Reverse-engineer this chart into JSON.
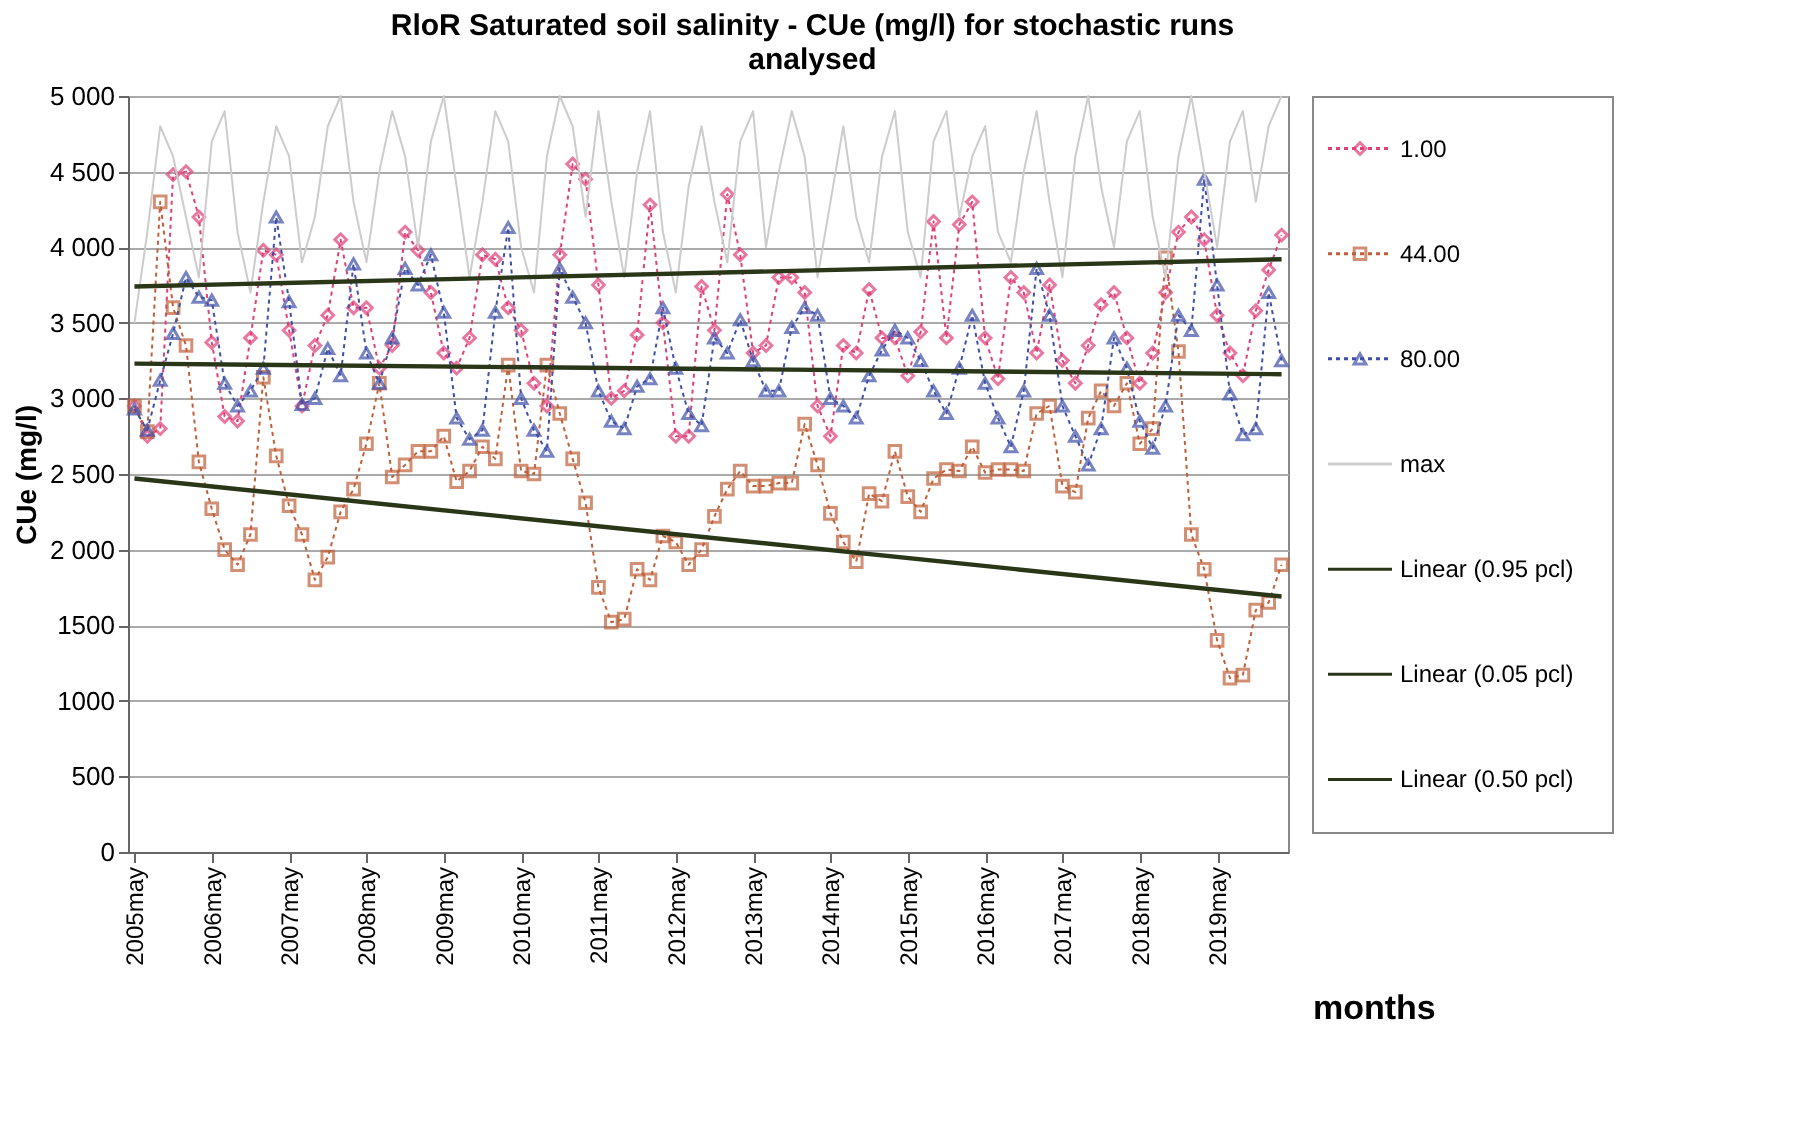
{
  "chart_data": {
    "type": "line",
    "title": "RloR Saturated soil salinity - CUe (mg/l)  for stochastic runs analysed",
    "xlabel": "months",
    "ylabel": "CUe (mg/l)",
    "categories": [
      "2005may",
      null,
      null,
      null,
      null,
      null,
      "2006may",
      null,
      null,
      null,
      null,
      null,
      "2007may",
      null,
      null,
      null,
      null,
      null,
      "2008may",
      null,
      null,
      null,
      null,
      null,
      "2009may",
      null,
      null,
      null,
      null,
      null,
      "2010may",
      null,
      null,
      null,
      null,
      null,
      "2011may",
      null,
      null,
      null,
      null,
      null,
      "2012may",
      null,
      null,
      null,
      null,
      null,
      "2013may",
      null,
      null,
      null,
      null,
      null,
      "2014may",
      null,
      null,
      null,
      null,
      null,
      "2015may",
      null,
      null,
      null,
      null,
      null,
      "2016may",
      null,
      null,
      null,
      null,
      null,
      "2017may",
      null,
      null,
      null,
      null,
      null,
      "2018may",
      null,
      null,
      null,
      null,
      null,
      "2019may",
      null,
      null,
      null,
      null,
      null
    ],
    "ylim": [
      0,
      5000
    ],
    "yticks": [
      0,
      500,
      1000,
      {
        "value": 1500,
        "label": "1500"
      },
      {
        "value": 2000,
        "label": "2 000"
      },
      {
        "value": 2500,
        "label": "2 500"
      },
      {
        "value": 3000,
        "label": "3 000"
      },
      {
        "value": 3500,
        "label": "3 500"
      },
      {
        "value": 4000,
        "label": "4 000"
      },
      {
        "value": 4500,
        "label": "4 500"
      },
      {
        "value": 5000,
        "label": "5 000"
      }
    ],
    "grid": "y",
    "legend": "right",
    "series": [
      {
        "name": "1.00",
        "color": "#e0407a",
        "marker": "diamond",
        "line_style": "dotted",
        "values": [
          2950,
          2750,
          2800,
          4480,
          4500,
          4200,
          3370,
          2880,
          2850,
          3400,
          3980,
          3950,
          3450,
          2950,
          3350,
          3550,
          4050,
          3600,
          3600,
          3200,
          3350,
          4100,
          3980,
          3700,
          3300,
          3200,
          3400,
          3950,
          3920,
          3600,
          3450,
          3100,
          2950,
          3950,
          4550,
          4450,
          3750,
          3000,
          3050,
          3420,
          4280,
          3500,
          2750,
          2750,
          3740,
          3450,
          4350,
          3950,
          3300,
          3350,
          3800,
          3800,
          3700,
          2950,
          2750,
          3350,
          3300,
          3720,
          3400,
          3400,
          3150,
          3440,
          4170,
          3400,
          4150,
          4300,
          3400,
          3130,
          3800,
          3700,
          3300,
          3750,
          3250,
          3100,
          3350,
          3620,
          3700,
          3400,
          3100,
          3300,
          3700,
          4100,
          4200,
          4050,
          3550,
          3300,
          3150,
          3580,
          3850,
          4080
        ]
      },
      {
        "name": "44.00",
        "color": "#c0603a",
        "marker": "square",
        "line_style": "dotted",
        "values": [
          2950,
          2780,
          4300,
          3600,
          3350,
          2580,
          2270,
          2000,
          1900,
          2100,
          3140,
          2620,
          2290,
          2100,
          1800,
          1950,
          2250,
          2400,
          2700,
          3100,
          2480,
          2560,
          2650,
          2650,
          2750,
          2450,
          2520,
          2680,
          2600,
          3220,
          2520,
          2500,
          3220,
          2900,
          2600,
          2310,
          1750,
          1520,
          1540,
          1870,
          1800,
          2090,
          2050,
          1900,
          2000,
          2220,
          2400,
          2520,
          2420,
          2420,
          2440,
          2440,
          2830,
          2560,
          2240,
          2050,
          1920,
          2370,
          2320,
          2650,
          2350,
          2250,
          2470,
          2530,
          2520,
          2680,
          2510,
          2530,
          2530,
          2520,
          2900,
          2950,
          2420,
          2380,
          2870,
          3050,
          2950,
          3100,
          2700,
          2800,
          3930,
          3310,
          2100,
          1870,
          1400,
          1150,
          1170,
          1600,
          1650,
          1900
        ]
      },
      {
        "name": "80.00",
        "color": "#4050a8",
        "marker": "triangle",
        "line_style": "dotted",
        "values": [
          2930,
          2790,
          3120,
          3430,
          3800,
          3670,
          3650,
          3100,
          2950,
          3050,
          3200,
          4200,
          3640,
          2960,
          3000,
          3330,
          3150,
          3890,
          3300,
          3100,
          3400,
          3860,
          3750,
          3950,
          3570,
          2870,
          2730,
          2790,
          3570,
          4130,
          3000,
          2790,
          2650,
          3860,
          3670,
          3500,
          3050,
          2850,
          2800,
          3080,
          3130,
          3600,
          3200,
          2900,
          2820,
          3400,
          3300,
          3520,
          3250,
          3050,
          3050,
          3470,
          3600,
          3550,
          3000,
          2950,
          2870,
          3150,
          3320,
          3450,
          3400,
          3250,
          3050,
          2900,
          3200,
          3550,
          3100,
          2870,
          2680,
          3050,
          3860,
          3550,
          2950,
          2750,
          2560,
          2800,
          3400,
          3200,
          2850,
          2670,
          2950,
          3550,
          3450,
          4450,
          3750,
          3030,
          2760,
          2800,
          3700,
          3250
        ]
      },
      {
        "name": "max",
        "color": "#cccccc",
        "marker": "none",
        "line_style": "solid",
        "values": [
          3500,
          4100,
          4800,
          4600,
          4200,
          3800,
          4700,
          4900,
          4100,
          3700,
          4300,
          4800,
          4600,
          3900,
          4200,
          4800,
          5000,
          4300,
          3900,
          4500,
          4900,
          4600,
          4000,
          4700,
          5000,
          4400,
          3800,
          4300,
          4900,
          4700,
          4000,
          3700,
          4600,
          5000,
          4800,
          4200,
          4900,
          4300,
          3800,
          4500,
          4900,
          4100,
          3700,
          4400,
          4800,
          4300,
          3900,
          4700,
          4900,
          4000,
          4500,
          4900,
          4600,
          3800,
          4300,
          4800,
          4200,
          3900,
          4600,
          4900,
          4100,
          3800,
          4700,
          4900,
          4200,
          4600,
          4800,
          4100,
          3900,
          4500,
          4900,
          4300,
          3800,
          4600,
          5000,
          4400,
          4000,
          4700,
          4900,
          4200,
          3800,
          4600,
          5000,
          4500,
          4000,
          4700,
          4900,
          4300,
          4800,
          5000
        ]
      },
      {
        "name": "Linear (0.95 pcl)",
        "color": "#2a3618",
        "marker": "none",
        "line_style": "solid",
        "values": [
          3740,
          null,
          null,
          null,
          null,
          null,
          null,
          null,
          null,
          null,
          null,
          null,
          null,
          null,
          null,
          null,
          null,
          null,
          null,
          null,
          null,
          null,
          null,
          null,
          null,
          null,
          null,
          null,
          null,
          null,
          null,
          null,
          null,
          null,
          null,
          null,
          null,
          null,
          null,
          null,
          null,
          null,
          null,
          null,
          null,
          null,
          null,
          null,
          null,
          null,
          null,
          null,
          null,
          null,
          null,
          null,
          null,
          null,
          null,
          null,
          null,
          null,
          null,
          null,
          null,
          null,
          null,
          null,
          null,
          null,
          null,
          null,
          null,
          null,
          null,
          null,
          null,
          null,
          null,
          null,
          null,
          null,
          null,
          null,
          null,
          null,
          null,
          null,
          null,
          3920
        ]
      },
      {
        "name": "Linear (0.05 pcl)",
        "color": "#2a3618",
        "marker": "none",
        "line_style": "solid",
        "values": [
          2470,
          null,
          null,
          null,
          null,
          null,
          null,
          null,
          null,
          null,
          null,
          null,
          null,
          null,
          null,
          null,
          null,
          null,
          null,
          null,
          null,
          null,
          null,
          null,
          null,
          null,
          null,
          null,
          null,
          null,
          null,
          null,
          null,
          null,
          null,
          null,
          null,
          null,
          null,
          null,
          null,
          null,
          null,
          null,
          null,
          null,
          null,
          null,
          null,
          null,
          null,
          null,
          null,
          null,
          null,
          null,
          null,
          null,
          null,
          null,
          null,
          null,
          null,
          null,
          null,
          null,
          null,
          null,
          null,
          null,
          null,
          null,
          null,
          null,
          null,
          null,
          null,
          null,
          null,
          null,
          null,
          null,
          null,
          null,
          null,
          null,
          null,
          null,
          null,
          1690
        ]
      },
      {
        "name": "Linear (0.50 pcl)",
        "color": "#2a3618",
        "marker": "none",
        "line_style": "solid",
        "values": [
          3230,
          null,
          null,
          null,
          null,
          null,
          null,
          null,
          null,
          null,
          null,
          null,
          null,
          null,
          null,
          null,
          null,
          null,
          null,
          null,
          null,
          null,
          null,
          null,
          null,
          null,
          null,
          null,
          null,
          null,
          null,
          null,
          null,
          null,
          null,
          null,
          null,
          null,
          null,
          null,
          null,
          null,
          null,
          null,
          null,
          null,
          null,
          null,
          null,
          null,
          null,
          null,
          null,
          null,
          null,
          null,
          null,
          null,
          null,
          null,
          null,
          null,
          null,
          null,
          null,
          null,
          null,
          null,
          null,
          null,
          null,
          null,
          null,
          null,
          null,
          null,
          null,
          null,
          null,
          null,
          null,
          null,
          null,
          null,
          null,
          null,
          null,
          null,
          null,
          3160
        ]
      }
    ]
  }
}
